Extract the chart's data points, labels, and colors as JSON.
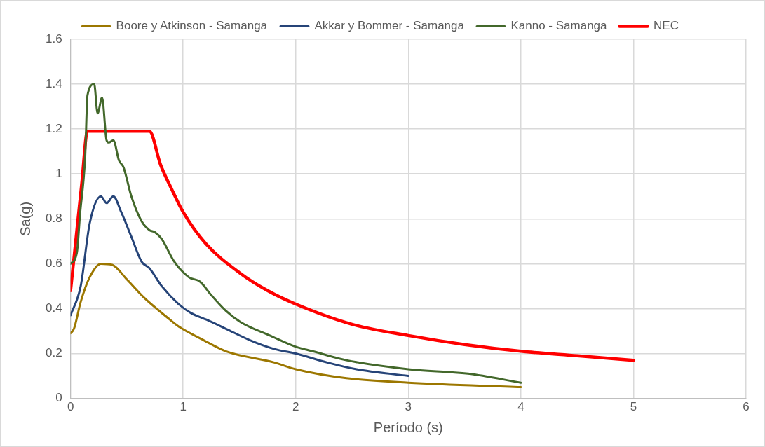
{
  "chart_data": {
    "type": "line",
    "xlabel": "Período (s)",
    "ylabel": "Sa(g)",
    "xlim": [
      0,
      6
    ],
    "xticks": [
      0,
      1,
      2,
      3,
      4,
      5,
      6
    ],
    "ylim": [
      0,
      1.6
    ],
    "yticks": [
      0,
      0.2,
      0.4,
      0.6,
      0.8,
      1,
      1.2,
      1.4,
      1.6
    ],
    "grid": true,
    "legend": "top",
    "marker": "none",
    "line_style": "solid",
    "series": [
      {
        "name": "Boore y Atkinson - Samanga",
        "color": "#9c7700",
        "x": [
          0,
          0.03,
          0.09,
          0.17,
          0.27,
          0.37,
          0.5,
          0.65,
          0.86,
          0.96,
          1.18,
          1.38,
          1.81,
          2,
          2.45,
          3,
          4
        ],
        "values": [
          0.29,
          0.31,
          0.43,
          0.54,
          0.6,
          0.595,
          0.53,
          0.45,
          0.36,
          0.32,
          0.26,
          0.21,
          0.16,
          0.13,
          0.09,
          0.07,
          0.05
        ]
      },
      {
        "name": "Akkar y Bommer - Samanga",
        "color": "#264478",
        "x": [
          0,
          0.09,
          0.17,
          0.27,
          0.32,
          0.38,
          0.45,
          0.54,
          0.63,
          0.7,
          0.81,
          0.96,
          1.07,
          1.21,
          1.38,
          1.59,
          1.81,
          2,
          2.28,
          2.54,
          3
        ],
        "values": [
          0.37,
          0.5,
          0.78,
          0.9,
          0.87,
          0.9,
          0.83,
          0.72,
          0.61,
          0.58,
          0.5,
          0.42,
          0.38,
          0.35,
          0.31,
          0.26,
          0.22,
          0.2,
          0.16,
          0.13,
          0.1
        ]
      },
      {
        "name": "Kanno - Samanga",
        "color": "#43682b",
        "x": [
          0,
          0.056,
          0.084,
          0.13,
          0.15,
          0.21,
          0.24,
          0.28,
          0.32,
          0.34,
          0.38,
          0.43,
          0.47,
          0.54,
          0.63,
          0.7,
          0.75,
          0.81,
          0.92,
          1.05,
          1.15,
          1.25,
          1.38,
          1.51,
          1.77,
          2,
          2.15,
          2.45,
          3,
          3.53,
          4
        ],
        "values": [
          0.6,
          0.65,
          0.82,
          1.08,
          1.35,
          1.4,
          1.27,
          1.34,
          1.15,
          1.14,
          1.15,
          1.06,
          1.03,
          0.9,
          0.79,
          0.75,
          0.74,
          0.71,
          0.61,
          0.54,
          0.52,
          0.46,
          0.39,
          0.34,
          0.28,
          0.23,
          0.21,
          0.17,
          0.13,
          0.11,
          0.07
        ]
      },
      {
        "name": "NEC",
        "color": "#ff0000",
        "x": [
          0,
          0.05,
          0.1,
          0.15,
          0.7,
          0.8,
          0.9,
          1,
          1.2,
          1.5,
          1.75,
          2,
          2.5,
          3,
          3.5,
          4,
          4.5,
          5
        ],
        "values": [
          0.48,
          0.72,
          0.96,
          1.19,
          1.19,
          1.04,
          0.93,
          0.83,
          0.69,
          0.56,
          0.48,
          0.42,
          0.33,
          0.28,
          0.24,
          0.21,
          0.19,
          0.17
        ]
      }
    ]
  }
}
